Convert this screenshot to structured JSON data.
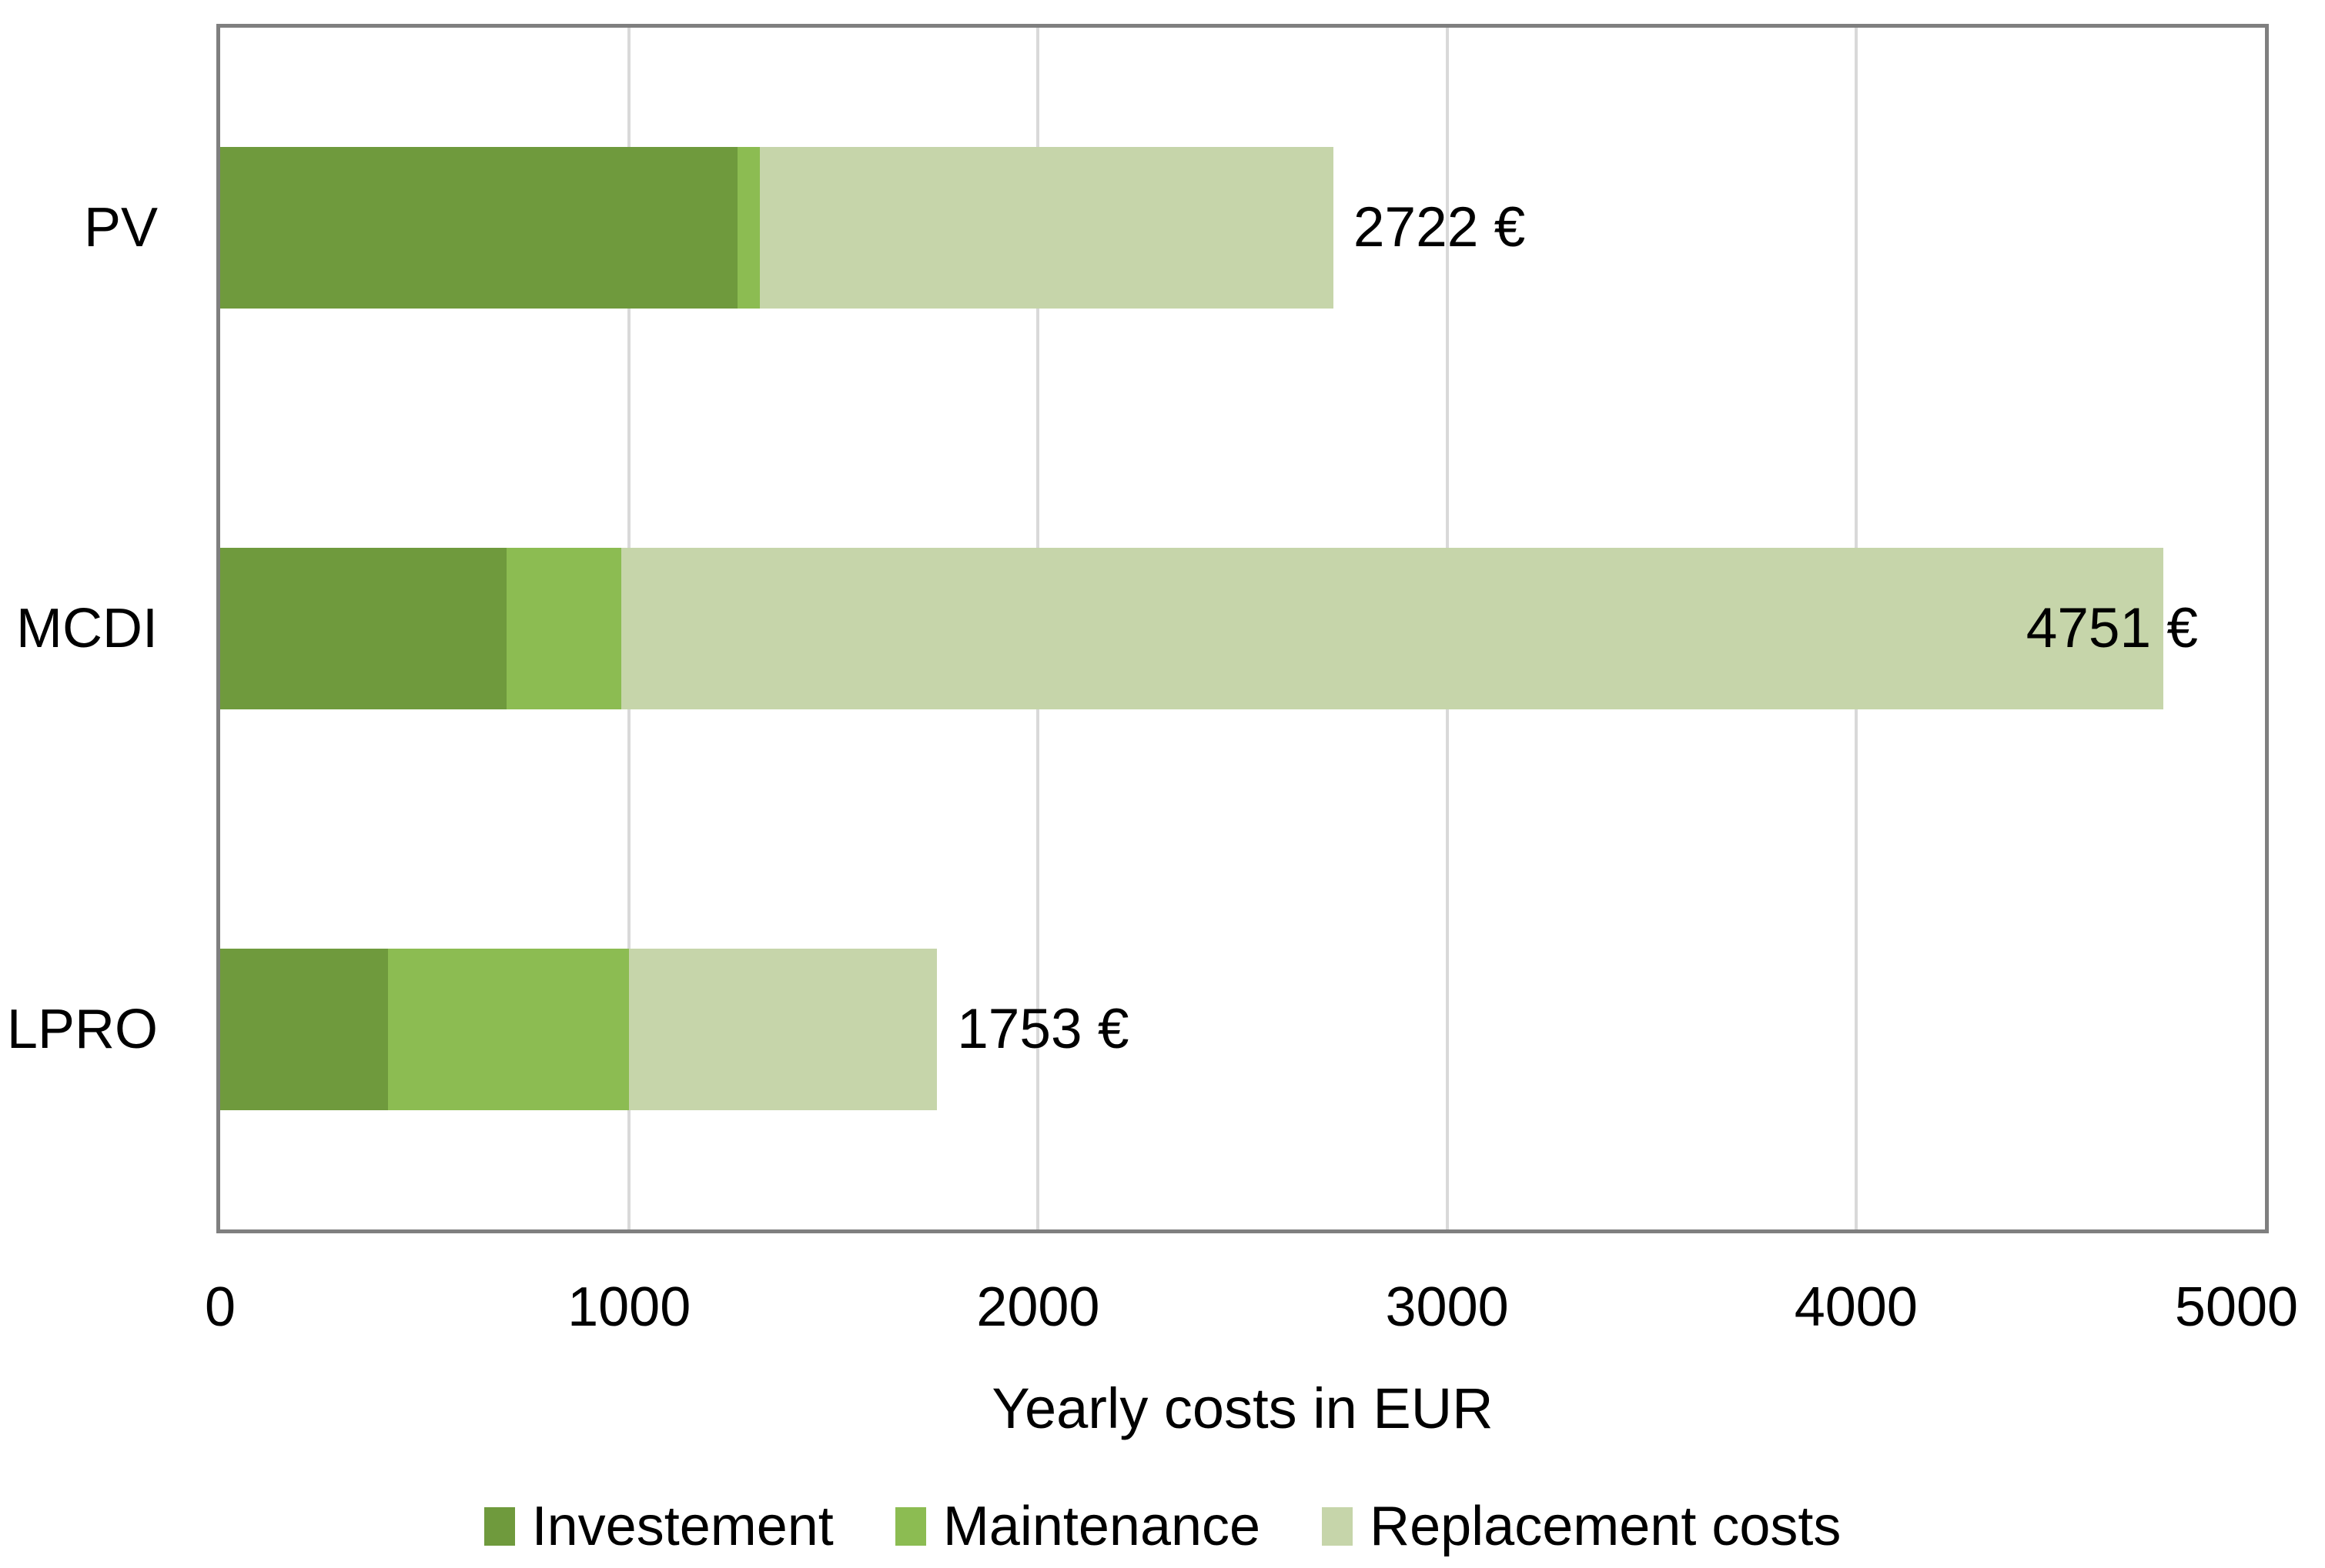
{
  "chart_data": {
    "type": "bar",
    "orientation": "horizontal-stacked",
    "title": "",
    "categories": [
      "PV",
      "MCDI",
      "LPRO"
    ],
    "series": [
      {
        "name": "Investement",
        "color": "#6F9A3D",
        "values": [
          1265,
          700,
          410
        ]
      },
      {
        "name": "Maintenance",
        "color": "#8CBC52",
        "values": [
          55,
          280,
          590
        ]
      },
      {
        "name": "Replacement costs",
        "color": "#C6D5AA",
        "values": [
          1402,
          3771,
          753
        ]
      }
    ],
    "totals": [
      2722,
      4751,
      1753
    ],
    "total_labels": [
      "2722 €",
      "4751 €",
      "1753 €"
    ],
    "xlabel": "Yearly costs in EUR",
    "ylabel": "",
    "xlim": [
      0,
      5000
    ],
    "xticks": [
      "0",
      "1000",
      "2000",
      "3000",
      "4000",
      "5000"
    ],
    "grid": "vertical-major",
    "legend_position": "bottom",
    "colors": {
      "plot_border": "#7F7F7F",
      "gridline": "#D9D9D9",
      "text": "#000000",
      "background": "#FFFFFF"
    }
  }
}
